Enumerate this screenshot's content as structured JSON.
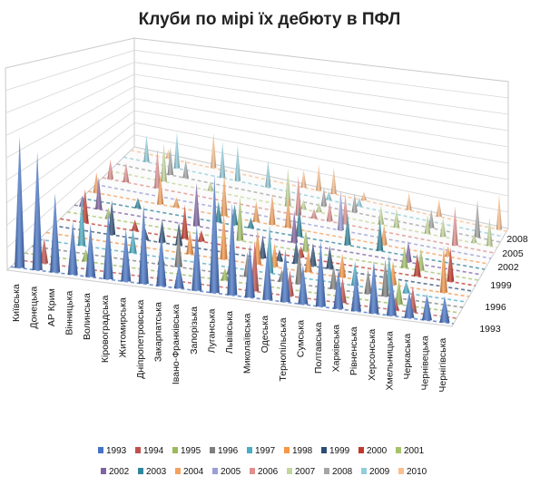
{
  "chart_data": {
    "type": "bar",
    "title": "Клуби по мірі їх дебюту в ПФЛ",
    "categories": [
      "Київська",
      "Донецька",
      "АР Крим",
      "Вінницька",
      "Волинська",
      "Кіровоградська",
      "Житомирська",
      "Дніпропетровська",
      "Закарпатська",
      "Івано-Франківська",
      "Запорізька",
      "Луганська",
      "Львівська",
      "Миколаївська",
      "Одеська",
      "Тернопільська",
      "Сумська",
      "Полтавська",
      "Харківська",
      "Рівненська",
      "Херсонська",
      "Хмельницька",
      "Черкаська",
      "Чернівецька",
      "Чернігівська"
    ],
    "depth_axis_labels": [
      "1993",
      "1996",
      "1999",
      "2002",
      "2005",
      "2008"
    ],
    "legend": [
      "1993",
      "1994",
      "1995",
      "1996",
      "1997",
      "1998",
      "1999",
      "2000",
      "2001",
      "2002",
      "2003",
      "2004",
      "2005",
      "2006",
      "2007",
      "2008",
      "2009",
      "2010"
    ],
    "legend_placement": "bottom",
    "front_series": {
      "name": "1993",
      "values": [
        10,
        9,
        6,
        4,
        4,
        5,
        4,
        6,
        4,
        2,
        5,
        9,
        7,
        4,
        4,
        4,
        3,
        5,
        3,
        3,
        4,
        3,
        2,
        2,
        2
      ]
    },
    "colors": {
      "1993": "#4472C4",
      "1994": "#C0504D",
      "1995": "#9BBB59",
      "1996": "#7F7F7F",
      "1997": "#4BACC6",
      "1998": "#F79646",
      "1999": "#2C4D75",
      "2000": "#C0392B",
      "2001": "#A6C36A",
      "2002": "#8064A2",
      "2003": "#31859C",
      "2004": "#F5A25D",
      "2005": "#9A9ED6",
      "2006": "#E0908D",
      "2007": "#C4D79B",
      "2008": "#A5A5A5",
      "2009": "#92CDDC",
      "2010": "#FABF8F"
    }
  }
}
